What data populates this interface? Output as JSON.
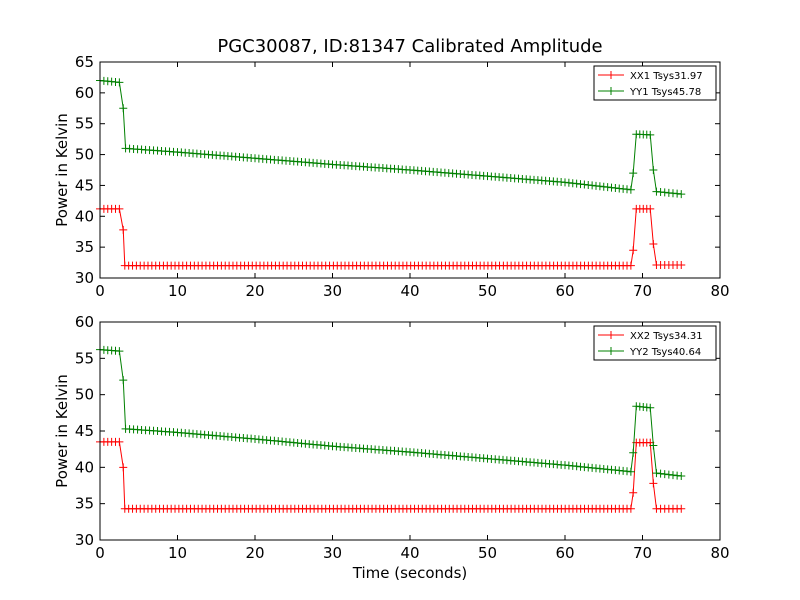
{
  "figure": {
    "title": "PGC30087, ID:81347 Calibrated Amplitude",
    "xlabel": "Time (seconds)"
  },
  "chart_data": [
    {
      "type": "line",
      "xlabel": "",
      "ylabel": "Power in Kelvin",
      "xlim": [
        0,
        80
      ],
      "ylim": [
        30,
        65
      ],
      "xticks": [
        0,
        10,
        20,
        30,
        40,
        50,
        60,
        70,
        80
      ],
      "yticks": [
        30,
        35,
        40,
        45,
        50,
        55,
        60,
        65
      ],
      "grid": false,
      "legend_position": "top-right",
      "marker": "+",
      "series": [
        {
          "name": "XX1 Tsys31.97",
          "color": "#ff0000",
          "points": [
            [
              0,
              41.2
            ],
            [
              2.5,
              41.2
            ],
            [
              3.0,
              37.8
            ],
            [
              3.2,
              32.0
            ],
            [
              68.5,
              32.0
            ],
            [
              68.8,
              34.5
            ],
            [
              69.2,
              41.2
            ],
            [
              71.0,
              41.2
            ],
            [
              71.4,
              35.5
            ],
            [
              71.8,
              32.1
            ],
            [
              75.0,
              32.1
            ]
          ]
        },
        {
          "name": "YY1 Tsys45.78",
          "color": "#008000",
          "points": [
            [
              0,
              62.0
            ],
            [
              2.5,
              61.7
            ],
            [
              3.0,
              57.5
            ],
            [
              3.3,
              51.0
            ],
            [
              10,
              50.4
            ],
            [
              20,
              49.4
            ],
            [
              30,
              48.4
            ],
            [
              40,
              47.5
            ],
            [
              50,
              46.5
            ],
            [
              60,
              45.5
            ],
            [
              68.5,
              44.3
            ],
            [
              68.8,
              47.0
            ],
            [
              69.2,
              53.3
            ],
            [
              71.0,
              53.2
            ],
            [
              71.4,
              47.5
            ],
            [
              71.8,
              44.0
            ],
            [
              75.0,
              43.6
            ]
          ]
        }
      ]
    },
    {
      "type": "line",
      "xlabel": "Time (seconds)",
      "ylabel": "Power in Kelvin",
      "xlim": [
        0,
        80
      ],
      "ylim": [
        30,
        60
      ],
      "xticks": [
        0,
        10,
        20,
        30,
        40,
        50,
        60,
        70,
        80
      ],
      "yticks": [
        30,
        35,
        40,
        45,
        50,
        55,
        60
      ],
      "grid": false,
      "legend_position": "top-right",
      "marker": "+",
      "series": [
        {
          "name": "XX2 Tsys34.31",
          "color": "#ff0000",
          "points": [
            [
              0,
              43.5
            ],
            [
              2.5,
              43.5
            ],
            [
              3.0,
              40.0
            ],
            [
              3.2,
              34.3
            ],
            [
              68.5,
              34.3
            ],
            [
              68.8,
              36.5
            ],
            [
              69.2,
              43.4
            ],
            [
              71.0,
              43.4
            ],
            [
              71.4,
              37.8
            ],
            [
              71.8,
              34.3
            ],
            [
              75.0,
              34.3
            ]
          ]
        },
        {
          "name": "YY2 Tsys40.64",
          "color": "#008000",
          "points": [
            [
              0,
              56.2
            ],
            [
              2.5,
              56.0
            ],
            [
              3.0,
              52.0
            ],
            [
              3.3,
              45.3
            ],
            [
              10,
              44.8
            ],
            [
              20,
              43.9
            ],
            [
              30,
              42.9
            ],
            [
              40,
              42.1
            ],
            [
              50,
              41.2
            ],
            [
              60,
              40.3
            ],
            [
              68.5,
              39.4
            ],
            [
              68.8,
              42.0
            ],
            [
              69.2,
              48.4
            ],
            [
              71.0,
              48.2
            ],
            [
              71.4,
              43.0
            ],
            [
              71.8,
              39.2
            ],
            [
              75.0,
              38.8
            ]
          ]
        }
      ]
    }
  ]
}
